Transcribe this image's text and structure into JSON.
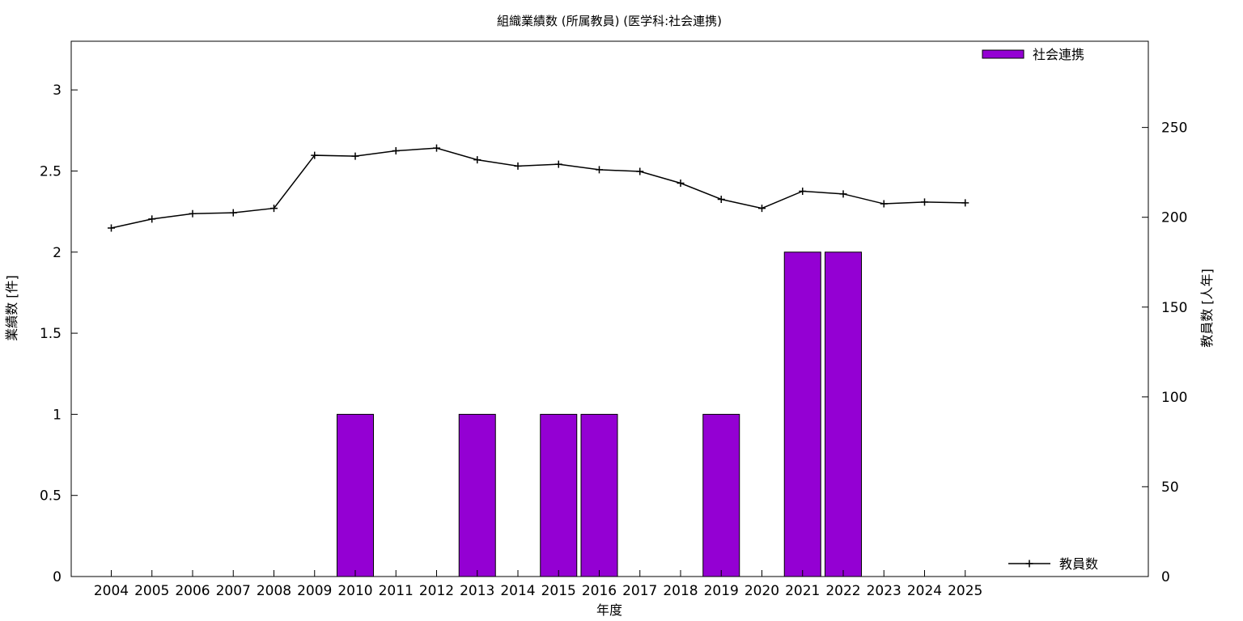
{
  "chart_data": {
    "type": "bar",
    "title": "組織業績数 (所属教員) (医学科:社会連携)",
    "xlabel": "年度",
    "ylabel": "業績数 [件]",
    "y2label": "教員数 [人年]",
    "categories": [
      "2004",
      "2005",
      "2006",
      "2007",
      "2008",
      "2009",
      "2010",
      "2011",
      "2012",
      "2013",
      "2014",
      "2015",
      "2016",
      "2017",
      "2018",
      "2019",
      "2020",
      "2021",
      "2022",
      "2023",
      "2024",
      "2025"
    ],
    "ylim": [
      0,
      3.3
    ],
    "y2lim": [
      0,
      298
    ],
    "yticks": [
      "0",
      "0.5",
      "1",
      "1.5",
      "2",
      "2.5",
      "3"
    ],
    "y2ticks": [
      "0",
      "50",
      "100",
      "150",
      "200",
      "250"
    ],
    "grid": false,
    "series": [
      {
        "name": "社会連携",
        "kind": "bar",
        "axis": "left",
        "color": "#9400d3",
        "values": [
          0,
          0,
          0,
          0,
          0,
          0,
          1,
          0,
          0,
          1,
          0,
          1,
          1,
          0,
          0,
          1,
          0,
          2,
          2,
          0,
          0,
          0
        ]
      },
      {
        "name": "教員数",
        "kind": "line",
        "axis": "right",
        "color": "#000000",
        "values": [
          194,
          199,
          202,
          202.5,
          205,
          234.5,
          234,
          237,
          238.5,
          232,
          228.5,
          229.5,
          226.5,
          225.5,
          219,
          210,
          205,
          214.5,
          213,
          207.5,
          208.5,
          208
        ]
      }
    ],
    "legend": [
      {
        "label": "社会連携",
        "placement": "top-right"
      },
      {
        "label": "教員数",
        "placement": "bottom-right"
      }
    ]
  }
}
